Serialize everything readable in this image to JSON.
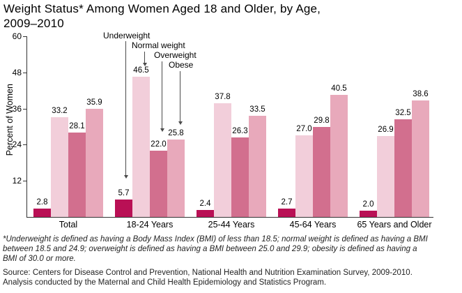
{
  "title": "Weight Status* Among Women Aged 18 and Older, by Age,\n2009–2010",
  "footnote": "*Underweight is defined as having a Body Mass Index (BMI) of less than 18.5; normal weight is defined as having a BMI between 18.5 and 24.9; overweight is defined as having a BMI between 25.0 and 29.9; obesity is defined as having a BMI of 30.0 or more.",
  "source": "Source: Centers for Disease Control and Prevention, National Health and Nutrition Examination Survey, 2009-2010. Analysis conducted by the Maternal and Child Health Epidemiology and Statistics Program.",
  "chart_data": {
    "type": "bar",
    "title": "Weight Status* Among Women Aged 18 and Older, by Age, 2009–2010",
    "xlabel": "",
    "ylabel": "Percent of Women",
    "ylim": [
      0,
      60
    ],
    "yticks": [
      12,
      24,
      36,
      48,
      60
    ],
    "grid": false,
    "legend_position": "arrow annotations above 18-24 Years group",
    "categories": [
      "Total",
      "18-24 Years",
      "25-44 Years",
      "45-64 Years",
      "65 Years and Older"
    ],
    "series": [
      {
        "name": "Underweight",
        "color": "#B91055",
        "values": [
          2.8,
          5.7,
          2.4,
          2.7,
          2.0
        ]
      },
      {
        "name": "Normal weight",
        "color": "#F2CEDA",
        "values": [
          33.2,
          46.5,
          37.8,
          27.0,
          26.9
        ]
      },
      {
        "name": "Overweight",
        "color": "#D26F8E",
        "values": [
          28.1,
          22.0,
          26.3,
          29.8,
          32.5
        ]
      },
      {
        "name": "Obese",
        "color": "#E8A9BB",
        "values": [
          35.9,
          25.8,
          33.5,
          40.5,
          38.6
        ]
      }
    ]
  }
}
